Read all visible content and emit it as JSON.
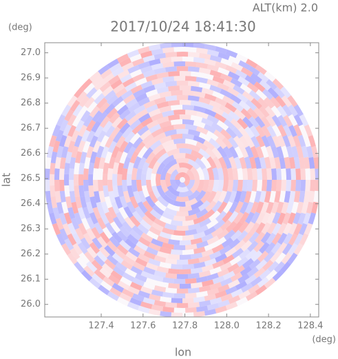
{
  "chart_data": {
    "type": "radar_ppi",
    "title": "2017/10/24 18:41:30",
    "subtitle": "ALT(km) 2.0",
    "x_label": "lon",
    "y_label": "lat",
    "x_unit": "(deg)",
    "y_unit": "(deg)",
    "xlim": [
      127.13,
      128.44
    ],
    "xticks": [
      127.4,
      127.6,
      127.8,
      {
        "value": 128.0,
        "label": "128.0"
      },
      128.2,
      128.4
    ],
    "ylim": [
      25.95,
      27.04
    ],
    "yticks": [
      {
        "value": 26.0,
        "label": "26.0"
      },
      26.1,
      26.2,
      26.3,
      26.4,
      26.5,
      26.6,
      26.7,
      26.8,
      26.9,
      {
        "value": 27.0,
        "label": "27.0"
      }
    ]
  }
}
